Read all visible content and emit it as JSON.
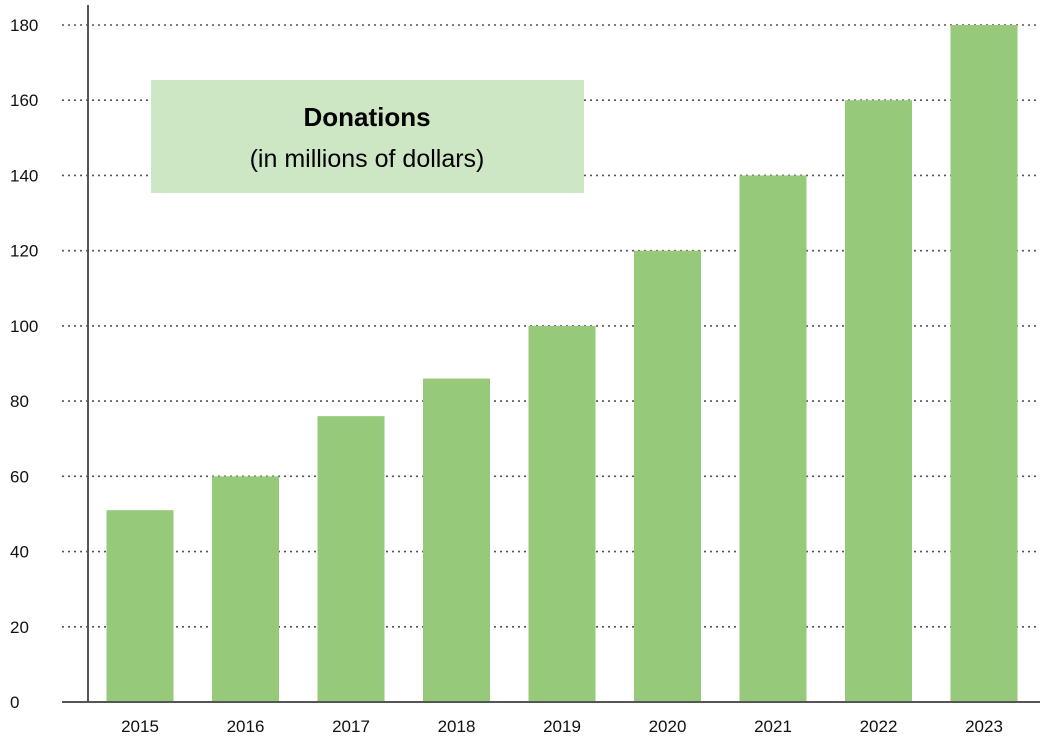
{
  "chart_data": {
    "type": "bar",
    "title": "Donations",
    "subtitle": "(in millions of dollars)",
    "categories": [
      "2015",
      "2016",
      "2017",
      "2018",
      "2019",
      "2020",
      "2021",
      "2022",
      "2023"
    ],
    "values": [
      51,
      60,
      76,
      86,
      100,
      120,
      140,
      160,
      180
    ],
    "ylim": [
      0,
      180
    ],
    "yticks": [
      0,
      20,
      40,
      60,
      80,
      100,
      120,
      140,
      160,
      180
    ],
    "grid": true,
    "xlabel": "",
    "ylabel": "",
    "colors": {
      "bar": "#97c97b",
      "title_box": "#cde6c4",
      "grid": "#555555",
      "axis": "#555555"
    }
  }
}
